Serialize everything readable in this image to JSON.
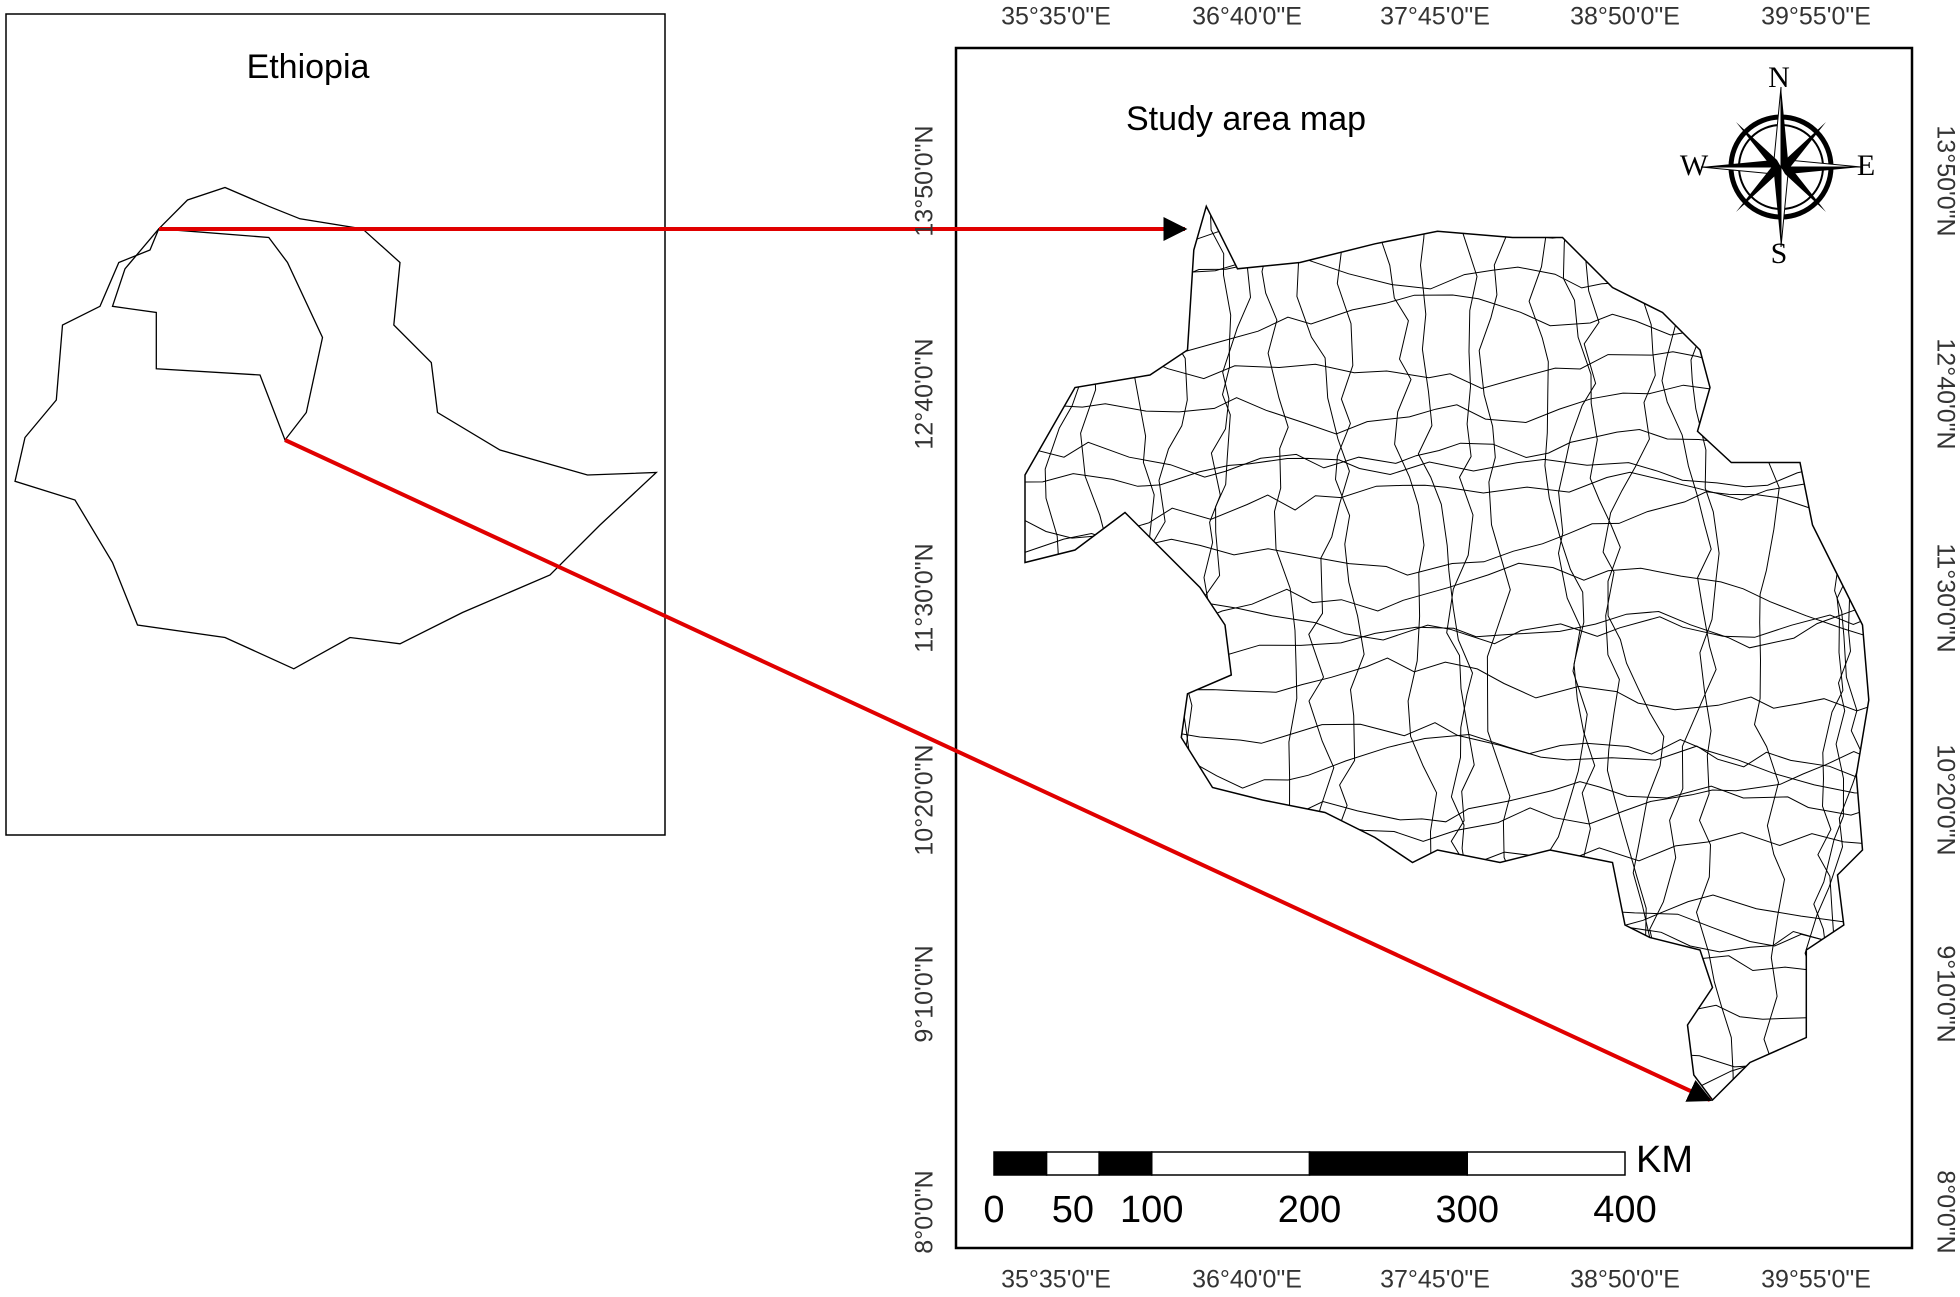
{
  "inset": {
    "title": "Ethiopia"
  },
  "main": {
    "title": "Study area map",
    "lon_labels": [
      "35°35'0\"E",
      "36°40'0\"E",
      "37°45'0\"E",
      "38°50'0\"E",
      "39°55'0\"E"
    ],
    "lat_labels": [
      "13°50'0\"N",
      "12°40'0\"N",
      "11°30'0\"N",
      "10°20'0\"N",
      "9°10'0\"N",
      "8°0'0\"N"
    ]
  },
  "compass": {
    "n": "N",
    "s": "S",
    "e": "E",
    "w": "W"
  },
  "scale_bar": {
    "unit": "KM",
    "labels": [
      0,
      50,
      100,
      200,
      300,
      400
    ]
  }
}
